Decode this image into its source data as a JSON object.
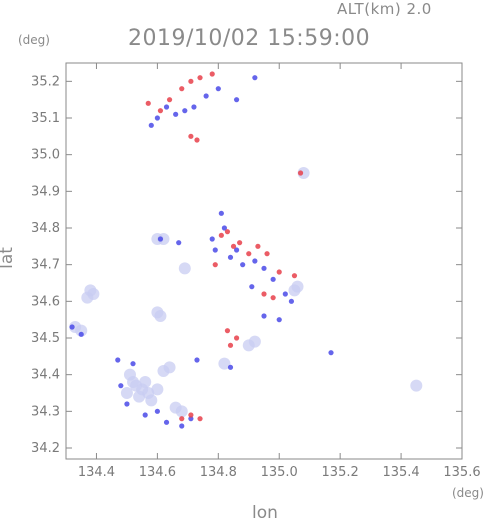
{
  "header": {
    "altitude_label": "ALT(km) 2.0",
    "timestamp": "2019/10/02 15:59:00"
  },
  "axes": {
    "y_unit": "(deg)",
    "x_unit": "(deg)",
    "y_title": "lat",
    "x_title": "lon"
  },
  "colors": {
    "positive_velocity": "#e8404a",
    "negative_velocity": "#4a4ae8",
    "weak_echo": "#c8ccf2",
    "axis": "#8a8a8a"
  },
  "chart_data": {
    "type": "scatter",
    "xlabel": "lon",
    "ylabel": "lat",
    "xlim": [
      134.3,
      135.6
    ],
    "ylim": [
      34.17,
      35.25
    ],
    "x_ticks": [
      "134.4",
      "134.6",
      "134.8",
      "135.0",
      "135.2",
      "135.4",
      "135.6"
    ],
    "y_ticks": [
      "34.2",
      "34.3",
      "34.4",
      "34.5",
      "34.6",
      "34.7",
      "34.8",
      "34.9",
      "35.0",
      "35.1",
      "35.2"
    ],
    "grid": false,
    "series": [
      {
        "kind": "weak",
        "points": [
          [
            134.53,
            34.37
          ],
          [
            134.55,
            34.36
          ],
          [
            134.57,
            34.35
          ],
          [
            134.52,
            34.38
          ],
          [
            134.56,
            34.38
          ],
          [
            134.5,
            34.35
          ],
          [
            134.58,
            34.33
          ],
          [
            134.54,
            34.34
          ],
          [
            134.6,
            34.36
          ],
          [
            134.51,
            34.4
          ],
          [
            134.38,
            34.63
          ],
          [
            134.39,
            34.62
          ],
          [
            134.37,
            34.61
          ],
          [
            134.33,
            34.53
          ],
          [
            134.35,
            34.52
          ],
          [
            134.62,
            34.41
          ],
          [
            134.64,
            34.42
          ],
          [
            134.82,
            34.43
          ],
          [
            134.66,
            34.31
          ],
          [
            134.68,
            34.3
          ],
          [
            134.6,
            34.77
          ],
          [
            134.62,
            34.77
          ],
          [
            134.61,
            34.56
          ],
          [
            134.6,
            34.57
          ],
          [
            134.9,
            34.48
          ],
          [
            134.92,
            34.49
          ],
          [
            135.05,
            34.63
          ],
          [
            135.06,
            34.64
          ],
          [
            134.69,
            34.69
          ],
          [
            135.45,
            34.37
          ],
          [
            135.08,
            34.95
          ]
        ]
      },
      {
        "kind": "negative",
        "points": [
          [
            134.47,
            34.44
          ],
          [
            134.52,
            34.43
          ],
          [
            134.48,
            34.37
          ],
          [
            134.5,
            34.32
          ],
          [
            134.56,
            34.29
          ],
          [
            134.6,
            34.3
          ],
          [
            134.63,
            34.27
          ],
          [
            134.68,
            34.26
          ],
          [
            134.71,
            34.28
          ],
          [
            134.78,
            34.77
          ],
          [
            134.79,
            34.74
          ],
          [
            134.82,
            34.8
          ],
          [
            134.84,
            34.72
          ],
          [
            134.86,
            34.74
          ],
          [
            134.88,
            34.7
          ],
          [
            134.92,
            34.71
          ],
          [
            134.95,
            34.69
          ],
          [
            134.98,
            34.66
          ],
          [
            135.02,
            34.62
          ],
          [
            135.04,
            34.6
          ],
          [
            134.91,
            34.64
          ],
          [
            134.95,
            34.56
          ],
          [
            135.0,
            34.55
          ],
          [
            134.58,
            35.08
          ],
          [
            134.6,
            35.1
          ],
          [
            134.63,
            35.13
          ],
          [
            134.66,
            35.11
          ],
          [
            134.69,
            35.12
          ],
          [
            134.72,
            35.13
          ],
          [
            134.76,
            35.16
          ],
          [
            134.8,
            35.18
          ],
          [
            134.86,
            35.15
          ],
          [
            134.92,
            35.21
          ],
          [
            134.61,
            34.77
          ],
          [
            134.67,
            34.76
          ],
          [
            134.84,
            34.42
          ],
          [
            134.35,
            34.51
          ],
          [
            134.32,
            34.53
          ],
          [
            135.17,
            34.46
          ],
          [
            134.81,
            34.84
          ],
          [
            134.73,
            34.44
          ]
        ]
      },
      {
        "kind": "positive",
        "points": [
          [
            134.57,
            35.14
          ],
          [
            134.61,
            35.12
          ],
          [
            134.64,
            35.15
          ],
          [
            134.68,
            35.18
          ],
          [
            134.71,
            35.2
          ],
          [
            134.74,
            35.21
          ],
          [
            134.78,
            35.22
          ],
          [
            134.73,
            35.04
          ],
          [
            134.71,
            35.05
          ],
          [
            134.81,
            34.78
          ],
          [
            134.83,
            34.79
          ],
          [
            134.85,
            34.75
          ],
          [
            134.87,
            34.76
          ],
          [
            134.9,
            34.73
          ],
          [
            134.93,
            34.75
          ],
          [
            134.96,
            34.73
          ],
          [
            135.0,
            34.68
          ],
          [
            134.98,
            34.61
          ],
          [
            135.05,
            34.67
          ],
          [
            134.83,
            34.52
          ],
          [
            134.86,
            34.5
          ],
          [
            134.84,
            34.48
          ],
          [
            134.68,
            34.28
          ],
          [
            134.71,
            34.29
          ],
          [
            134.74,
            34.28
          ],
          [
            134.95,
            34.62
          ],
          [
            135.07,
            34.95
          ],
          [
            134.79,
            34.7
          ]
        ]
      }
    ]
  }
}
